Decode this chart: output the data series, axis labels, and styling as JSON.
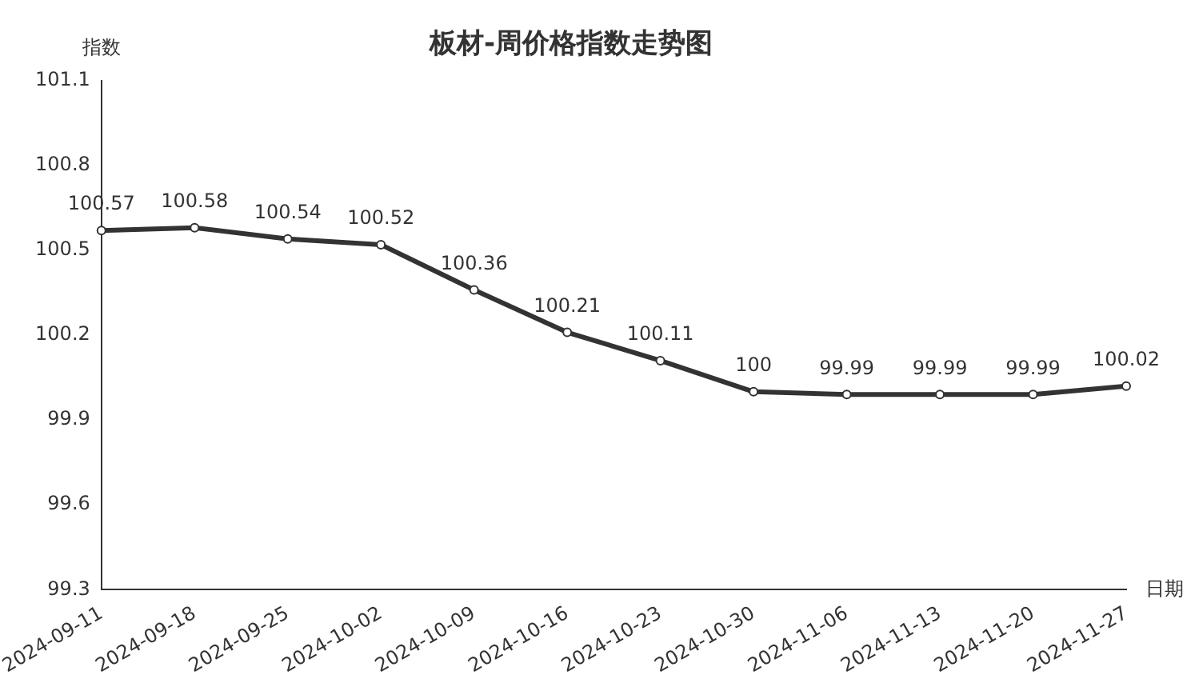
{
  "chart_data": {
    "type": "line",
    "title": "板材-周价格指数走势图",
    "xlabel": "日期",
    "ylabel": "指数",
    "categories": [
      "2024-09-11",
      "2024-09-18",
      "2024-09-25",
      "2024-10-02",
      "2024-10-09",
      "2024-10-16",
      "2024-10-23",
      "2024-10-30",
      "2024-11-06",
      "2024-11-13",
      "2024-11-20",
      "2024-11-27"
    ],
    "series": [
      {
        "color": "#333333",
        "values": [
          100.57,
          100.58,
          100.54,
          100.52,
          100.36,
          100.21,
          100.11,
          100,
          99.99,
          99.99,
          99.99,
          100.02
        ]
      }
    ],
    "ylim": [
      99.3,
      101.1
    ],
    "yticks": [
      99.3,
      99.6,
      99.9,
      100.2,
      100.5,
      100.8,
      101.1
    ],
    "grid": false,
    "legend": false,
    "marker": "circle",
    "line_style": "solid",
    "data_labels": true
  }
}
